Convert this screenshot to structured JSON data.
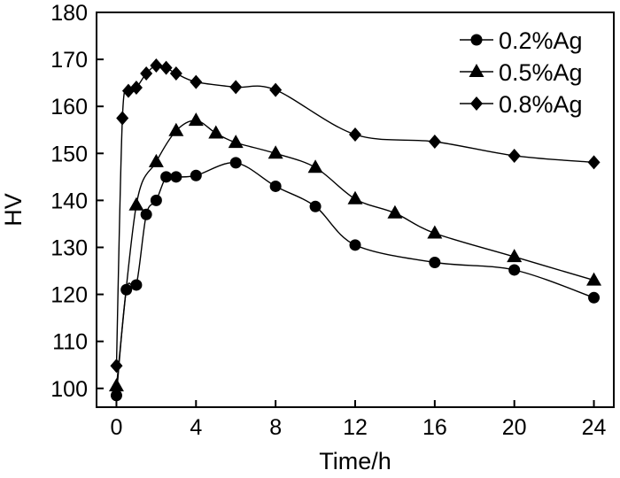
{
  "chart_data": {
    "type": "line",
    "title": "",
    "xlabel": "Time/h",
    "ylabel": "HV",
    "xlim": [
      -1,
      25
    ],
    "ylim": [
      96,
      180
    ],
    "xticks": [
      0,
      4,
      8,
      12,
      16,
      20,
      24
    ],
    "yticks": [
      100,
      110,
      120,
      130,
      140,
      150,
      160,
      170,
      180
    ],
    "grid": false,
    "legend_position": "top-right",
    "series": [
      {
        "name": "0.2%Ag",
        "marker": "circle",
        "x": [
          0,
          0.5,
          1,
          1.5,
          2,
          2.5,
          3,
          4,
          6,
          8,
          10,
          12,
          16,
          20,
          24
        ],
        "y": [
          98.5,
          121,
          122,
          137,
          140,
          145,
          145,
          145.3,
          148,
          143,
          138.7,
          130.5,
          126.8,
          125.2,
          119.3
        ]
      },
      {
        "name": "0.5%Ag",
        "marker": "triangle",
        "x": [
          0,
          1,
          2,
          3,
          4,
          5,
          6,
          8,
          10,
          12,
          14,
          16,
          20,
          24
        ],
        "y": [
          100.5,
          139,
          148.2,
          154.8,
          157,
          154.3,
          152.3,
          150,
          147,
          140.3,
          137.3,
          133,
          128,
          123
        ]
      },
      {
        "name": "0.8%Ag",
        "marker": "diamond",
        "x": [
          0,
          0.3,
          0.6,
          1,
          1.5,
          2,
          2.5,
          3,
          4,
          6,
          8,
          12,
          16,
          20,
          24
        ],
        "y": [
          104.8,
          157.5,
          163.3,
          164,
          167,
          168.7,
          168.2,
          167,
          165.2,
          164.1,
          163.5,
          154,
          152.5,
          149.5,
          148.1
        ]
      }
    ]
  }
}
